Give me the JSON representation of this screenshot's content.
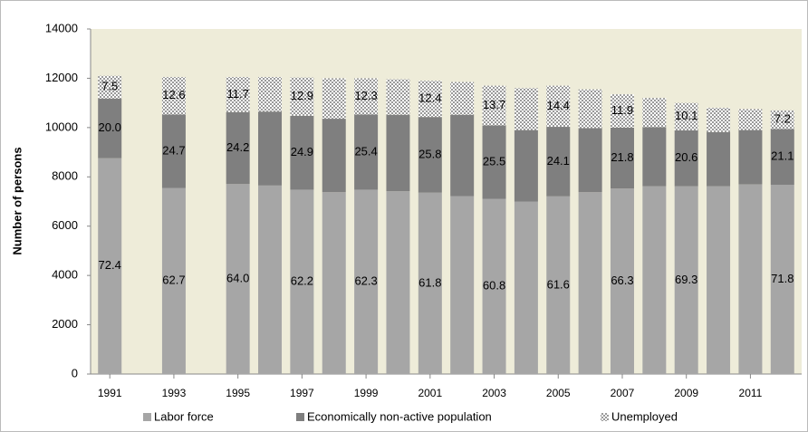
{
  "chart_data": {
    "type": "stacked_bar",
    "y_label": "Number of persons",
    "x": [
      1991,
      1993,
      1995,
      1996,
      1997,
      1998,
      1999,
      2000,
      2001,
      2002,
      2003,
      2004,
      2005,
      2006,
      2007,
      2008,
      2009,
      2010,
      2011,
      2012
    ],
    "xlim": [
      1990.4,
      2012.6
    ],
    "xticks": [
      1991,
      1993,
      1995,
      1997,
      1999,
      2001,
      2003,
      2005,
      2007,
      2009,
      2011
    ],
    "ylim": [
      0,
      14000
    ],
    "yticks": [
      0,
      2000,
      4000,
      6000,
      8000,
      10000,
      12000,
      14000
    ],
    "legend": "bottom",
    "background": "#eeecd9",
    "series": [
      {
        "name": "Labor force",
        "color": "#a6a6a6",
        "values": [
          8760,
          7550,
          7710,
          7650,
          7480,
          7380,
          7480,
          7420,
          7360,
          7220,
          7110,
          7000,
          7210,
          7380,
          7530,
          7620,
          7620,
          7620,
          7700,
          7680
        ],
        "shares": [
          "72.4",
          "62.7",
          "64.0",
          null,
          "62.2",
          null,
          "62.3",
          null,
          "61.8",
          null,
          "60.8",
          null,
          "61.6",
          null,
          "66.3",
          null,
          "69.3",
          null,
          null,
          "71.8"
        ]
      },
      {
        "name": "Economically non-active population",
        "color": "#7f7f7f",
        "values": [
          2420,
          2980,
          2920,
          3000,
          3000,
          2980,
          3050,
          3100,
          3070,
          3300,
          2980,
          2900,
          2820,
          2600,
          2470,
          2400,
          2270,
          2200,
          2200,
          2260
        ],
        "shares": [
          "20.0",
          "24.7",
          "24.2",
          null,
          "24.9",
          null,
          "25.4",
          null,
          "25.8",
          null,
          "25.5",
          null,
          "24.1",
          null,
          "21.8",
          null,
          "20.6",
          null,
          null,
          "21.1"
        ]
      },
      {
        "name": "Unemployed",
        "color": "#bfbfbf",
        "pattern": "dots",
        "values": [
          920,
          1520,
          1420,
          1400,
          1550,
          1640,
          1470,
          1440,
          1470,
          1330,
          1610,
          1700,
          1670,
          1570,
          1350,
          1180,
          1110,
          980,
          850,
          760
        ],
        "shares": [
          "7.5",
          "12.6",
          "11.7",
          null,
          "12.9",
          null,
          "12.3",
          null,
          "12.4",
          null,
          "13.7",
          null,
          "14.4",
          null,
          "11.9",
          null,
          "10.1",
          null,
          null,
          "7.2"
        ]
      }
    ]
  }
}
